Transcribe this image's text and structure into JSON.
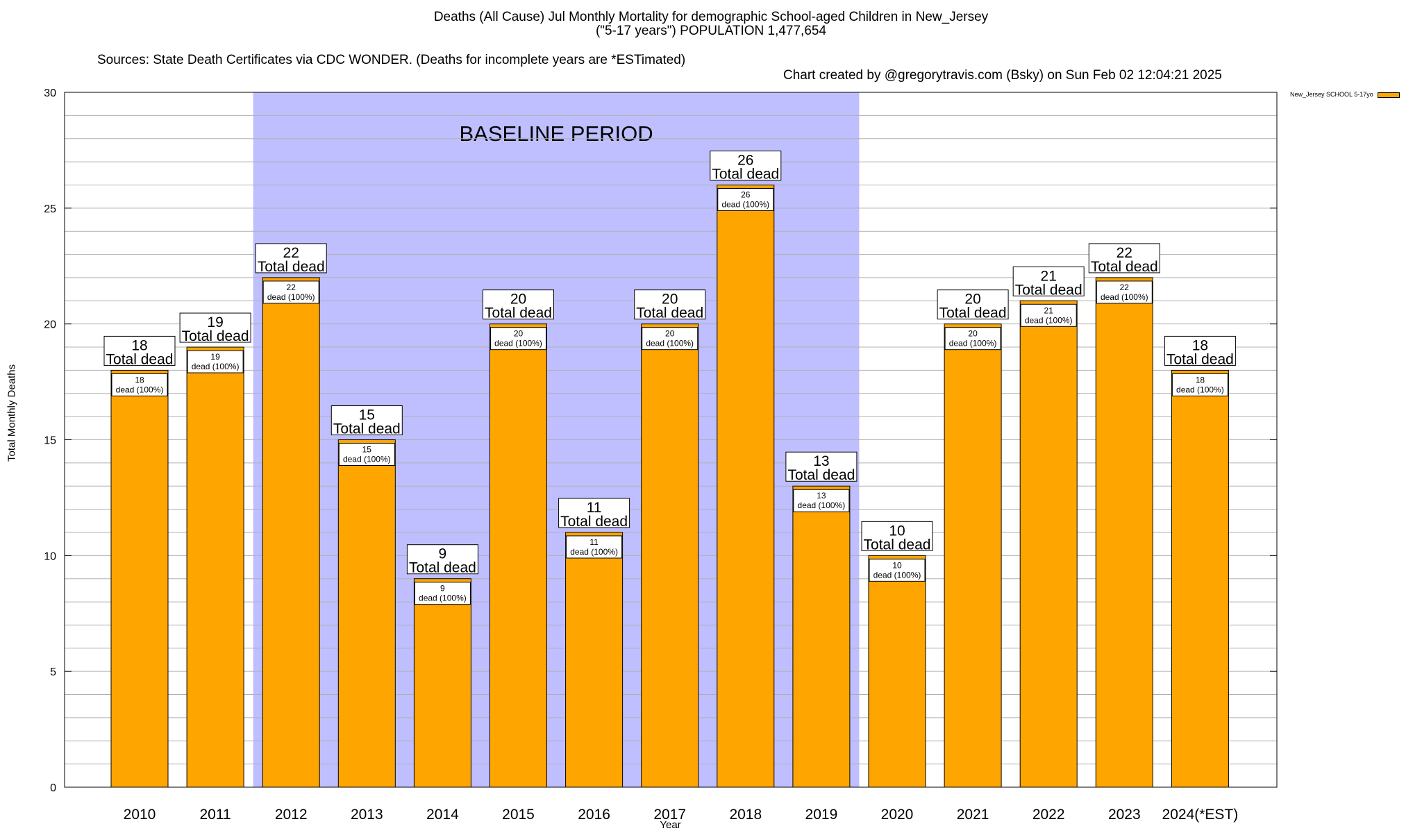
{
  "title": {
    "line1": "Deaths (All Cause) Jul Monthly Mortality for demographic School-aged Children in New_Jersey",
    "line2": "(\"5-17 years\") POPULATION 1,477,654",
    "line3_left": "Sources: State Death Certificates via CDC WONDER. (Deaths for incomplete years are *ESTimated)",
    "line3_right": "Chart created by @gregorytravis.com (Bsky) on Sun Feb 02 12:04:21 2025"
  },
  "colors": {
    "bar": "#FFA500",
    "baseline_shade": "#BFBFFF",
    "grid": "#B0B0B0"
  },
  "chart_data": {
    "type": "bar",
    "xlabel": "Year",
    "ylabel": "Total Monthly Deaths",
    "ylim": [
      0,
      30
    ],
    "yticks": [
      0,
      5,
      10,
      15,
      20,
      25,
      30
    ],
    "grid": true,
    "legend_position": "top-right",
    "categories": [
      "2010",
      "2011",
      "2012",
      "2013",
      "2014",
      "2015",
      "2016",
      "2017",
      "2018",
      "2019",
      "2020",
      "2021",
      "2022",
      "2023",
      "2024(*EST)"
    ],
    "series": [
      {
        "name": "New_Jersey SCHOOL 5-17yo",
        "values": [
          18,
          19,
          22,
          15,
          9,
          20,
          11,
          20,
          26,
          13,
          10,
          20,
          21,
          22,
          18
        ]
      }
    ],
    "top_label_suffix": "Total dead",
    "inner_label_suffix": "dead (100%)",
    "baseline_period": {
      "label": "BASELINE PERIOD",
      "start": "2012",
      "end": "2019"
    }
  }
}
